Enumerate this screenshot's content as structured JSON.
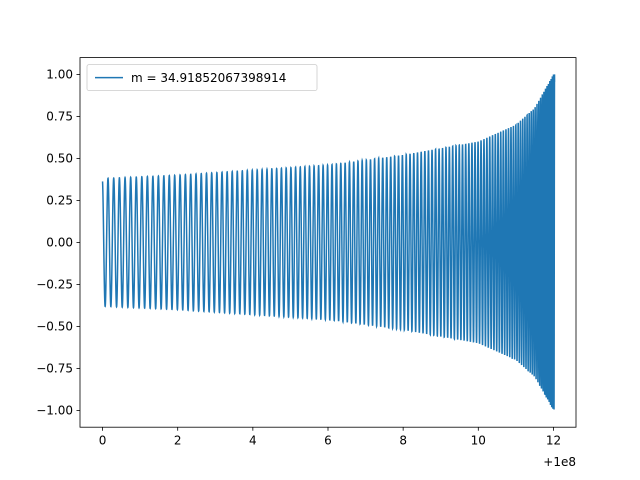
{
  "chart_data": {
    "type": "line",
    "title": "",
    "xlabel": "",
    "ylabel": "",
    "x_offset_label": "+1e8",
    "xlim": [
      -0.6,
      12.6
    ],
    "ylim": [
      -1.1,
      1.1
    ],
    "xticks": [
      0,
      2,
      4,
      6,
      8,
      10,
      12
    ],
    "yticks": [
      1.0,
      0.75,
      0.5,
      0.25,
      0.0,
      -0.25,
      -0.5,
      -0.75,
      -1.0
    ],
    "xtick_labels": [
      "0",
      "2",
      "4",
      "6",
      "8",
      "10",
      "12"
    ],
    "ytick_labels": [
      "1.00",
      "0.75",
      "0.50",
      "0.25",
      "0.00",
      "−0.25",
      "−0.50",
      "−0.75",
      "−1.00"
    ],
    "grid": false,
    "legend": {
      "placement": "top-left"
    },
    "series": [
      {
        "name": "m = 34.91852067398914",
        "color": "#1f77b4",
        "description_form": "chirp",
        "x_start": 0,
        "x_end": 12.03,
        "envelope": {
          "x": [
            0,
            2,
            4,
            6,
            8,
            10,
            11,
            11.5,
            12.0
          ],
          "amplitude": [
            0.38,
            0.4,
            0.43,
            0.46,
            0.52,
            0.6,
            0.7,
            0.8,
            1.0
          ]
        },
        "cycles": 120
      }
    ]
  }
}
